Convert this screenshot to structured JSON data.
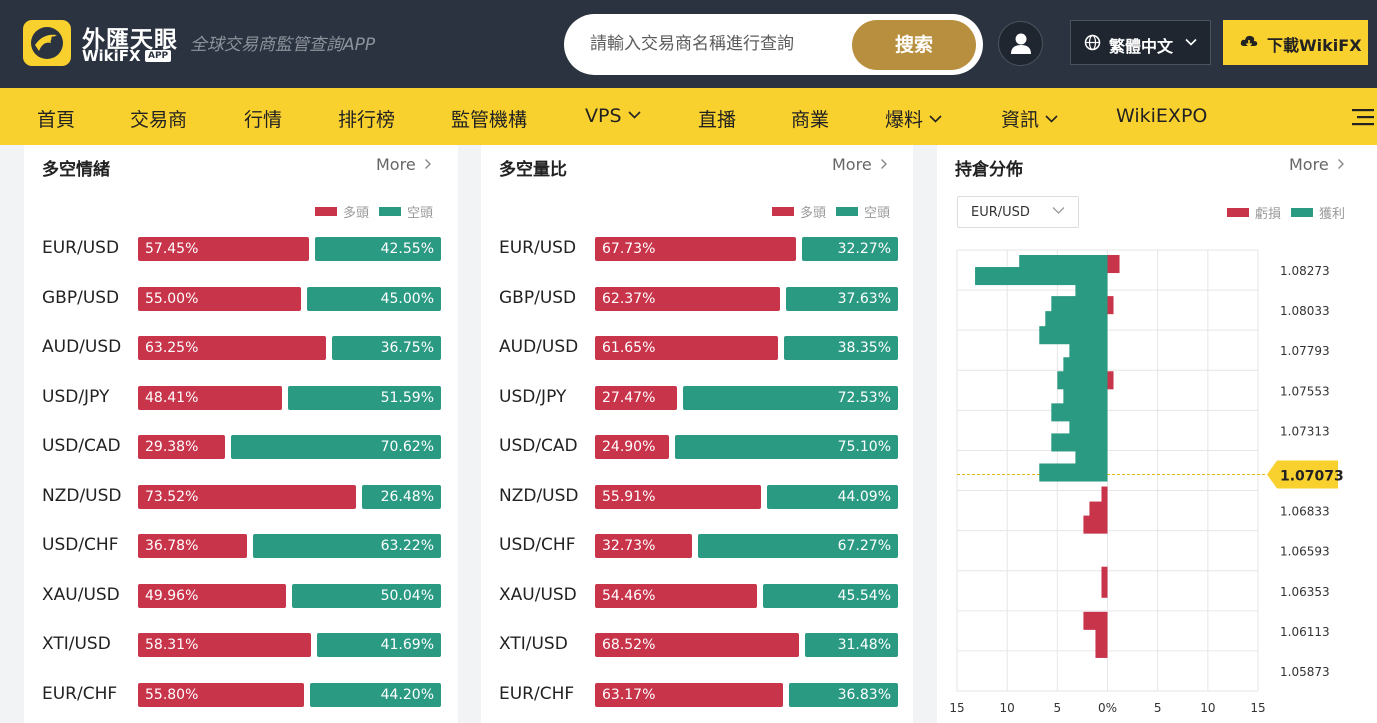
{
  "header": {
    "brand_cn": "外匯天眼",
    "brand_en": "WikiFX",
    "brand_app": "APP",
    "tagline": "全球交易商監管查詢APP",
    "search_placeholder": "請輸入交易商名稱進行查詢",
    "search_button": "搜索",
    "language": "繁體中文",
    "download": "下載WikiFX"
  },
  "nav": {
    "items": [
      {
        "label": "首頁"
      },
      {
        "label": "交易商"
      },
      {
        "label": "行情"
      },
      {
        "label": "排行榜"
      },
      {
        "label": "監管機構"
      },
      {
        "label": "VPS"
      },
      {
        "label": "直播"
      },
      {
        "label": "商業"
      },
      {
        "label": "爆料"
      },
      {
        "label": "資訊"
      },
      {
        "label": "WikiEXPO"
      }
    ]
  },
  "sentiment": {
    "title": "多空情緒",
    "more": "More",
    "legend_long": "多頭",
    "legend_short": "空頭",
    "rows": [
      {
        "pair": "EUR/USD",
        "long": "57.45%",
        "short": "42.55%"
      },
      {
        "pair": "GBP/USD",
        "long": "55.00%",
        "short": "45.00%"
      },
      {
        "pair": "AUD/USD",
        "long": "63.25%",
        "short": "36.75%"
      },
      {
        "pair": "USD/JPY",
        "long": "48.41%",
        "short": "51.59%"
      },
      {
        "pair": "USD/CAD",
        "long": "29.38%",
        "short": "70.62%"
      },
      {
        "pair": "NZD/USD",
        "long": "73.52%",
        "short": "26.48%"
      },
      {
        "pair": "USD/CHF",
        "long": "36.78%",
        "short": "63.22%"
      },
      {
        "pair": "XAU/USD",
        "long": "49.96%",
        "short": "50.04%"
      },
      {
        "pair": "XTI/USD",
        "long": "58.31%",
        "short": "41.69%"
      },
      {
        "pair": "EUR/CHF",
        "long": "55.80%",
        "short": "44.20%"
      }
    ]
  },
  "ratio": {
    "title": "多空量比",
    "more": "More",
    "legend_long": "多頭",
    "legend_short": "空頭",
    "rows": [
      {
        "pair": "EUR/USD",
        "long": "67.73%",
        "short": "32.27%"
      },
      {
        "pair": "GBP/USD",
        "long": "62.37%",
        "short": "37.63%"
      },
      {
        "pair": "AUD/USD",
        "long": "61.65%",
        "short": "38.35%"
      },
      {
        "pair": "USD/JPY",
        "long": "27.47%",
        "short": "72.53%"
      },
      {
        "pair": "USD/CAD",
        "long": "24.90%",
        "short": "75.10%"
      },
      {
        "pair": "NZD/USD",
        "long": "55.91%",
        "short": "44.09%"
      },
      {
        "pair": "USD/CHF",
        "long": "32.73%",
        "short": "67.27%"
      },
      {
        "pair": "XAU/USD",
        "long": "54.46%",
        "short": "45.54%"
      },
      {
        "pair": "XTI/USD",
        "long": "68.52%",
        "short": "31.48%"
      },
      {
        "pair": "EUR/CHF",
        "long": "63.17%",
        "short": "36.83%"
      }
    ]
  },
  "distribution": {
    "title": "持倉分佈",
    "more": "More",
    "selected_pair": "EUR/USD",
    "legend_loss": "虧損",
    "legend_profit": "獲利",
    "current_price": "1.07073"
  },
  "chart_data": {
    "type": "bar",
    "orientation": "horizontal",
    "x_range": [
      -15,
      15
    ],
    "x_ticks": [
      "15",
      "10",
      "5",
      "0%",
      "5",
      "10",
      "15"
    ],
    "y_ticks": [
      "1.08273",
      "1.08033",
      "1.07793",
      "1.07553",
      "1.07313",
      "1.07073",
      "1.06833",
      "1.06593",
      "1.06353",
      "1.06113",
      "1.05873"
    ],
    "current_price": "1.07073",
    "grid": true,
    "series": [
      {
        "name": "虧損",
        "color": "#c8344a",
        "bars": [
          {
            "level": 0.2,
            "value": 1.2
          },
          {
            "level": 2.25,
            "value": 0.6
          },
          {
            "level": 6.0,
            "value": 0.6
          },
          {
            "level": 11.75,
            "value": -0.6
          },
          {
            "level": 12.5,
            "value": -1.8
          },
          {
            "level": 13.2,
            "value": -2.4
          },
          {
            "level": 15.75,
            "value": -0.6
          },
          {
            "level": 16.4,
            "value": -0.6
          },
          {
            "level": 18.0,
            "value": -2.4
          },
          {
            "level": 18.75,
            "value": -1.2
          },
          {
            "level": 19.4,
            "value": -1.2
          }
        ]
      },
      {
        "name": "獲利",
        "color": "#2b9a83",
        "bars": [
          {
            "level": 0.2,
            "value": -8.8
          },
          {
            "level": 0.8,
            "value": -13.2
          },
          {
            "level": 1.6,
            "value": -3.2
          },
          {
            "level": 2.25,
            "value": -5.6
          },
          {
            "level": 3.0,
            "value": -6.2
          },
          {
            "level": 3.75,
            "value": -6.8
          },
          {
            "level": 4.6,
            "value": -3.8
          },
          {
            "level": 5.3,
            "value": -4.4
          },
          {
            "level": 6.0,
            "value": -5.0
          },
          {
            "level": 6.75,
            "value": -4.4
          },
          {
            "level": 7.6,
            "value": -5.6
          },
          {
            "level": 8.4,
            "value": -3.8
          },
          {
            "level": 9.1,
            "value": -5.6
          },
          {
            "level": 9.9,
            "value": -3.2
          },
          {
            "level": 10.6,
            "value": -6.8
          }
        ]
      }
    ]
  }
}
